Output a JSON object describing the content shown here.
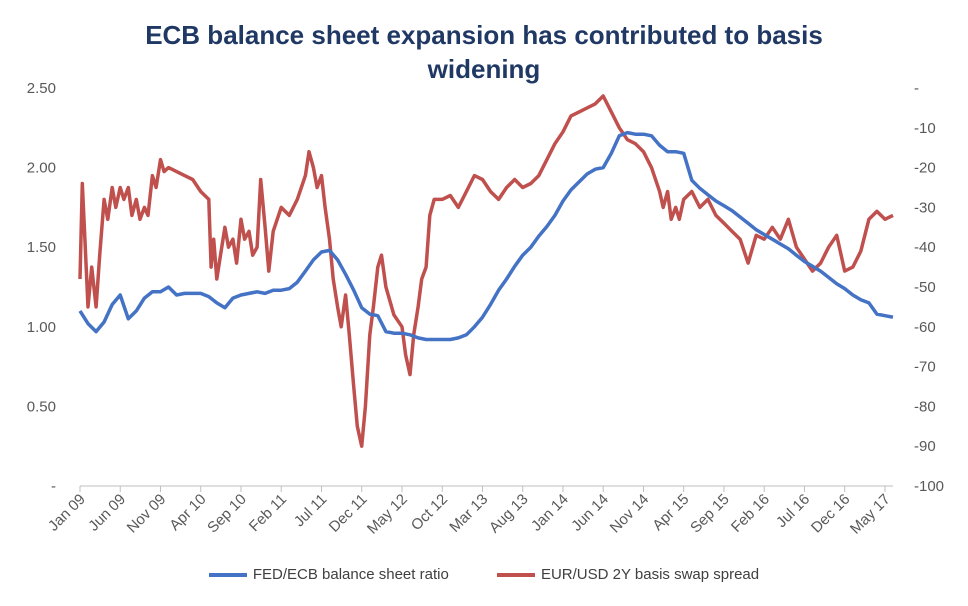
{
  "chart_data": {
    "type": "line",
    "title": [
      "ECB balance sheet expansion has contributed to basis",
      "widening"
    ],
    "x_tick_labels": [
      "Jan 09",
      "Jun 09",
      "Nov 09",
      "Apr 10",
      "Sep 10",
      "Feb 11",
      "Jul 11",
      "Dec 11",
      "May 12",
      "Oct 12",
      "Mar 13",
      "Aug 13",
      "Jan 14",
      "Jun 14",
      "Nov 14",
      "Apr 15",
      "Sep 15",
      "Feb 16",
      "Jul 16",
      "Dec 16",
      "May 17"
    ],
    "x_start": "2009-01",
    "x_end": "2017-06",
    "y_left": {
      "ylim": [
        0,
        2.5
      ],
      "ticks": [
        "-",
        "0.50",
        "1.00",
        "1.50",
        "2.00",
        "2.50"
      ]
    },
    "y_right": {
      "ylim": [
        -100,
        0
      ],
      "ticks": [
        "-",
        "-10",
        "-20",
        "-30",
        "-40",
        "-50",
        "-60",
        "-70",
        "-80",
        "-90",
        "-100"
      ]
    },
    "grid": false,
    "legend_position": "bottom",
    "series": [
      {
        "name": "FED/ECB balance sheet ratio",
        "axis": "left",
        "color": "#4472c4",
        "points": [
          [
            "2009-01",
            1.1
          ],
          [
            "2009-02",
            1.02
          ],
          [
            "2009-03",
            0.97
          ],
          [
            "2009-04",
            1.03
          ],
          [
            "2009-05",
            1.14
          ],
          [
            "2009-06",
            1.2
          ],
          [
            "2009-07",
            1.05
          ],
          [
            "2009-08",
            1.1
          ],
          [
            "2009-09",
            1.18
          ],
          [
            "2009-10",
            1.22
          ],
          [
            "2009-11",
            1.22
          ],
          [
            "2009-12",
            1.25
          ],
          [
            "2010-01",
            1.2
          ],
          [
            "2010-02",
            1.21
          ],
          [
            "2010-03",
            1.21
          ],
          [
            "2010-04",
            1.21
          ],
          [
            "2010-05",
            1.19
          ],
          [
            "2010-06",
            1.15
          ],
          [
            "2010-07",
            1.12
          ],
          [
            "2010-08",
            1.18
          ],
          [
            "2010-09",
            1.2
          ],
          [
            "2010-10",
            1.21
          ],
          [
            "2010-11",
            1.22
          ],
          [
            "2010-12",
            1.21
          ],
          [
            "2011-01",
            1.23
          ],
          [
            "2011-02",
            1.23
          ],
          [
            "2011-03",
            1.24
          ],
          [
            "2011-04",
            1.28
          ],
          [
            "2011-05",
            1.35
          ],
          [
            "2011-06",
            1.42
          ],
          [
            "2011-07",
            1.47
          ],
          [
            "2011-08",
            1.48
          ],
          [
            "2011-09",
            1.42
          ],
          [
            "2011-10",
            1.33
          ],
          [
            "2011-11",
            1.23
          ],
          [
            "2011-12",
            1.12
          ],
          [
            "2012-01",
            1.08
          ],
          [
            "2012-02",
            1.07
          ],
          [
            "2012-03",
            0.97
          ],
          [
            "2012-04",
            0.96
          ],
          [
            "2012-05",
            0.96
          ],
          [
            "2012-06",
            0.95
          ],
          [
            "2012-07",
            0.93
          ],
          [
            "2012-08",
            0.92
          ],
          [
            "2012-09",
            0.92
          ],
          [
            "2012-10",
            0.92
          ],
          [
            "2012-11",
            0.92
          ],
          [
            "2012-12",
            0.93
          ],
          [
            "2013-01",
            0.95
          ],
          [
            "2013-02",
            1.0
          ],
          [
            "2013-03",
            1.06
          ],
          [
            "2013-04",
            1.14
          ],
          [
            "2013-05",
            1.23
          ],
          [
            "2013-06",
            1.3
          ],
          [
            "2013-07",
            1.38
          ],
          [
            "2013-08",
            1.45
          ],
          [
            "2013-09",
            1.5
          ],
          [
            "2013-10",
            1.57
          ],
          [
            "2013-11",
            1.63
          ],
          [
            "2013-12",
            1.7
          ],
          [
            "2014-01",
            1.79
          ],
          [
            "2014-02",
            1.86
          ],
          [
            "2014-03",
            1.91
          ],
          [
            "2014-04",
            1.96
          ],
          [
            "2014-05",
            1.99
          ],
          [
            "2014-06",
            2.0
          ],
          [
            "2014-07",
            2.09
          ],
          [
            "2014-08",
            2.2
          ],
          [
            "2014-09",
            2.22
          ],
          [
            "2014-10",
            2.21
          ],
          [
            "2014-11",
            2.21
          ],
          [
            "2014-12",
            2.2
          ],
          [
            "2015-01",
            2.14
          ],
          [
            "2015-02",
            2.1
          ],
          [
            "2015-03",
            2.1
          ],
          [
            "2015-04",
            2.09
          ],
          [
            "2015-05",
            1.92
          ],
          [
            "2015-06",
            1.87
          ],
          [
            "2015-07",
            1.83
          ],
          [
            "2015-08",
            1.79
          ],
          [
            "2015-09",
            1.76
          ],
          [
            "2015-10",
            1.73
          ],
          [
            "2015-11",
            1.69
          ],
          [
            "2015-12",
            1.65
          ],
          [
            "2016-01",
            1.61
          ],
          [
            "2016-02",
            1.58
          ],
          [
            "2016-03",
            1.55
          ],
          [
            "2016-04",
            1.52
          ],
          [
            "2016-05",
            1.49
          ],
          [
            "2016-06",
            1.45
          ],
          [
            "2016-07",
            1.41
          ],
          [
            "2016-08",
            1.38
          ],
          [
            "2016-09",
            1.35
          ],
          [
            "2016-10",
            1.31
          ],
          [
            "2016-11",
            1.27
          ],
          [
            "2016-12",
            1.24
          ],
          [
            "2017-01",
            1.2
          ],
          [
            "2017-02",
            1.17
          ],
          [
            "2017-03",
            1.15
          ],
          [
            "2017-04",
            1.08
          ],
          [
            "2017-05",
            1.07
          ],
          [
            "2017-06",
            1.06
          ]
        ]
      },
      {
        "name": "EUR/USD 2Y basis swap spread",
        "axis": "right",
        "color": "#c0504d",
        "points": [
          [
            "2009-01",
            -48
          ],
          [
            "2009-01-10",
            -24
          ],
          [
            "2009-01-20",
            -38
          ],
          [
            "2009-02",
            -55
          ],
          [
            "2009-02-15",
            -45
          ],
          [
            "2009-03",
            -55
          ],
          [
            "2009-03-15",
            -42
          ],
          [
            "2009-04",
            -28
          ],
          [
            "2009-04-15",
            -33
          ],
          [
            "2009-05",
            -25
          ],
          [
            "2009-05-15",
            -30
          ],
          [
            "2009-06",
            -25
          ],
          [
            "2009-06-15",
            -28
          ],
          [
            "2009-07",
            -25
          ],
          [
            "2009-07-15",
            -32
          ],
          [
            "2009-08",
            -28
          ],
          [
            "2009-08-15",
            -33
          ],
          [
            "2009-09",
            -30
          ],
          [
            "2009-09-15",
            -32
          ],
          [
            "2009-10",
            -22
          ],
          [
            "2009-10-15",
            -25
          ],
          [
            "2009-11",
            -18
          ],
          [
            "2009-11-15",
            -21
          ],
          [
            "2009-12",
            -20
          ],
          [
            "2010-01",
            -21
          ],
          [
            "2010-02",
            -22
          ],
          [
            "2010-03",
            -23
          ],
          [
            "2010-04",
            -26
          ],
          [
            "2010-05",
            -28
          ],
          [
            "2010-05-10",
            -45
          ],
          [
            "2010-05-20",
            -38
          ],
          [
            "2010-06",
            -48
          ],
          [
            "2010-06-15",
            -42
          ],
          [
            "2010-07",
            -35
          ],
          [
            "2010-07-15",
            -40
          ],
          [
            "2010-08",
            -38
          ],
          [
            "2010-08-15",
            -44
          ],
          [
            "2010-09",
            -33
          ],
          [
            "2010-09-15",
            -38
          ],
          [
            "2010-10",
            -36
          ],
          [
            "2010-10-15",
            -42
          ],
          [
            "2010-11",
            -40
          ],
          [
            "2010-11-15",
            -23
          ],
          [
            "2010-12",
            -35
          ],
          [
            "2010-12-15",
            -46
          ],
          [
            "2011-01",
            -36
          ],
          [
            "2011-02",
            -30
          ],
          [
            "2011-03",
            -32
          ],
          [
            "2011-04",
            -28
          ],
          [
            "2011-05",
            -22
          ],
          [
            "2011-05-15",
            -16
          ],
          [
            "2011-06",
            -20
          ],
          [
            "2011-06-15",
            -25
          ],
          [
            "2011-07",
            -22
          ],
          [
            "2011-07-15",
            -30
          ],
          [
            "2011-08",
            -38
          ],
          [
            "2011-08-15",
            -48
          ],
          [
            "2011-09",
            -55
          ],
          [
            "2011-09-15",
            -60
          ],
          [
            "2011-10",
            -52
          ],
          [
            "2011-10-15",
            -62
          ],
          [
            "2011-11",
            -75
          ],
          [
            "2011-11-15",
            -85
          ],
          [
            "2011-12",
            -90
          ],
          [
            "2011-12-15",
            -80
          ],
          [
            "2012-01",
            -62
          ],
          [
            "2012-01-15",
            -55
          ],
          [
            "2012-02",
            -45
          ],
          [
            "2012-02-15",
            -42
          ],
          [
            "2012-03",
            -50
          ],
          [
            "2012-04",
            -57
          ],
          [
            "2012-05",
            -60
          ],
          [
            "2012-05-15",
            -67
          ],
          [
            "2012-06",
            -72
          ],
          [
            "2012-06-15",
            -62
          ],
          [
            "2012-07",
            -55
          ],
          [
            "2012-07-15",
            -48
          ],
          [
            "2012-08",
            -45
          ],
          [
            "2012-08-15",
            -32
          ],
          [
            "2012-09",
            -28
          ],
          [
            "2012-10",
            -28
          ],
          [
            "2012-11",
            -27
          ],
          [
            "2012-12",
            -30
          ],
          [
            "2013-01",
            -26
          ],
          [
            "2013-02",
            -22
          ],
          [
            "2013-03",
            -23
          ],
          [
            "2013-04",
            -26
          ],
          [
            "2013-05",
            -28
          ],
          [
            "2013-06",
            -25
          ],
          [
            "2013-07",
            -23
          ],
          [
            "2013-08",
            -25
          ],
          [
            "2013-09",
            -24
          ],
          [
            "2013-10",
            -22
          ],
          [
            "2013-11",
            -18
          ],
          [
            "2013-12",
            -14
          ],
          [
            "2014-01",
            -11
          ],
          [
            "2014-02",
            -7
          ],
          [
            "2014-03",
            -6
          ],
          [
            "2014-04",
            -5
          ],
          [
            "2014-05",
            -4
          ],
          [
            "2014-06",
            -2
          ],
          [
            "2014-07",
            -6
          ],
          [
            "2014-08",
            -10
          ],
          [
            "2014-09",
            -13
          ],
          [
            "2014-10",
            -14
          ],
          [
            "2014-11",
            -16
          ],
          [
            "2014-12",
            -20
          ],
          [
            "2015-01",
            -26
          ],
          [
            "2015-01-15",
            -30
          ],
          [
            "2015-02",
            -26
          ],
          [
            "2015-02-15",
            -33
          ],
          [
            "2015-03",
            -30
          ],
          [
            "2015-03-15",
            -33
          ],
          [
            "2015-04",
            -28
          ],
          [
            "2015-05",
            -26
          ],
          [
            "2015-06",
            -30
          ],
          [
            "2015-07",
            -28
          ],
          [
            "2015-08",
            -32
          ],
          [
            "2015-09",
            -34
          ],
          [
            "2015-10",
            -36
          ],
          [
            "2015-11",
            -38
          ],
          [
            "2015-12",
            -44
          ],
          [
            "2016-01",
            -37
          ],
          [
            "2016-02",
            -38
          ],
          [
            "2016-03",
            -35
          ],
          [
            "2016-04",
            -38
          ],
          [
            "2016-05",
            -33
          ],
          [
            "2016-06",
            -40
          ],
          [
            "2016-07",
            -43
          ],
          [
            "2016-08",
            -46
          ],
          [
            "2016-09",
            -44
          ],
          [
            "2016-10",
            -40
          ],
          [
            "2016-11",
            -37
          ],
          [
            "2016-12",
            -46
          ],
          [
            "2017-01",
            -45
          ],
          [
            "2017-02",
            -41
          ],
          [
            "2017-03",
            -33
          ],
          [
            "2017-04",
            -31
          ],
          [
            "2017-05",
            -33
          ],
          [
            "2017-06",
            -32
          ]
        ]
      }
    ]
  }
}
